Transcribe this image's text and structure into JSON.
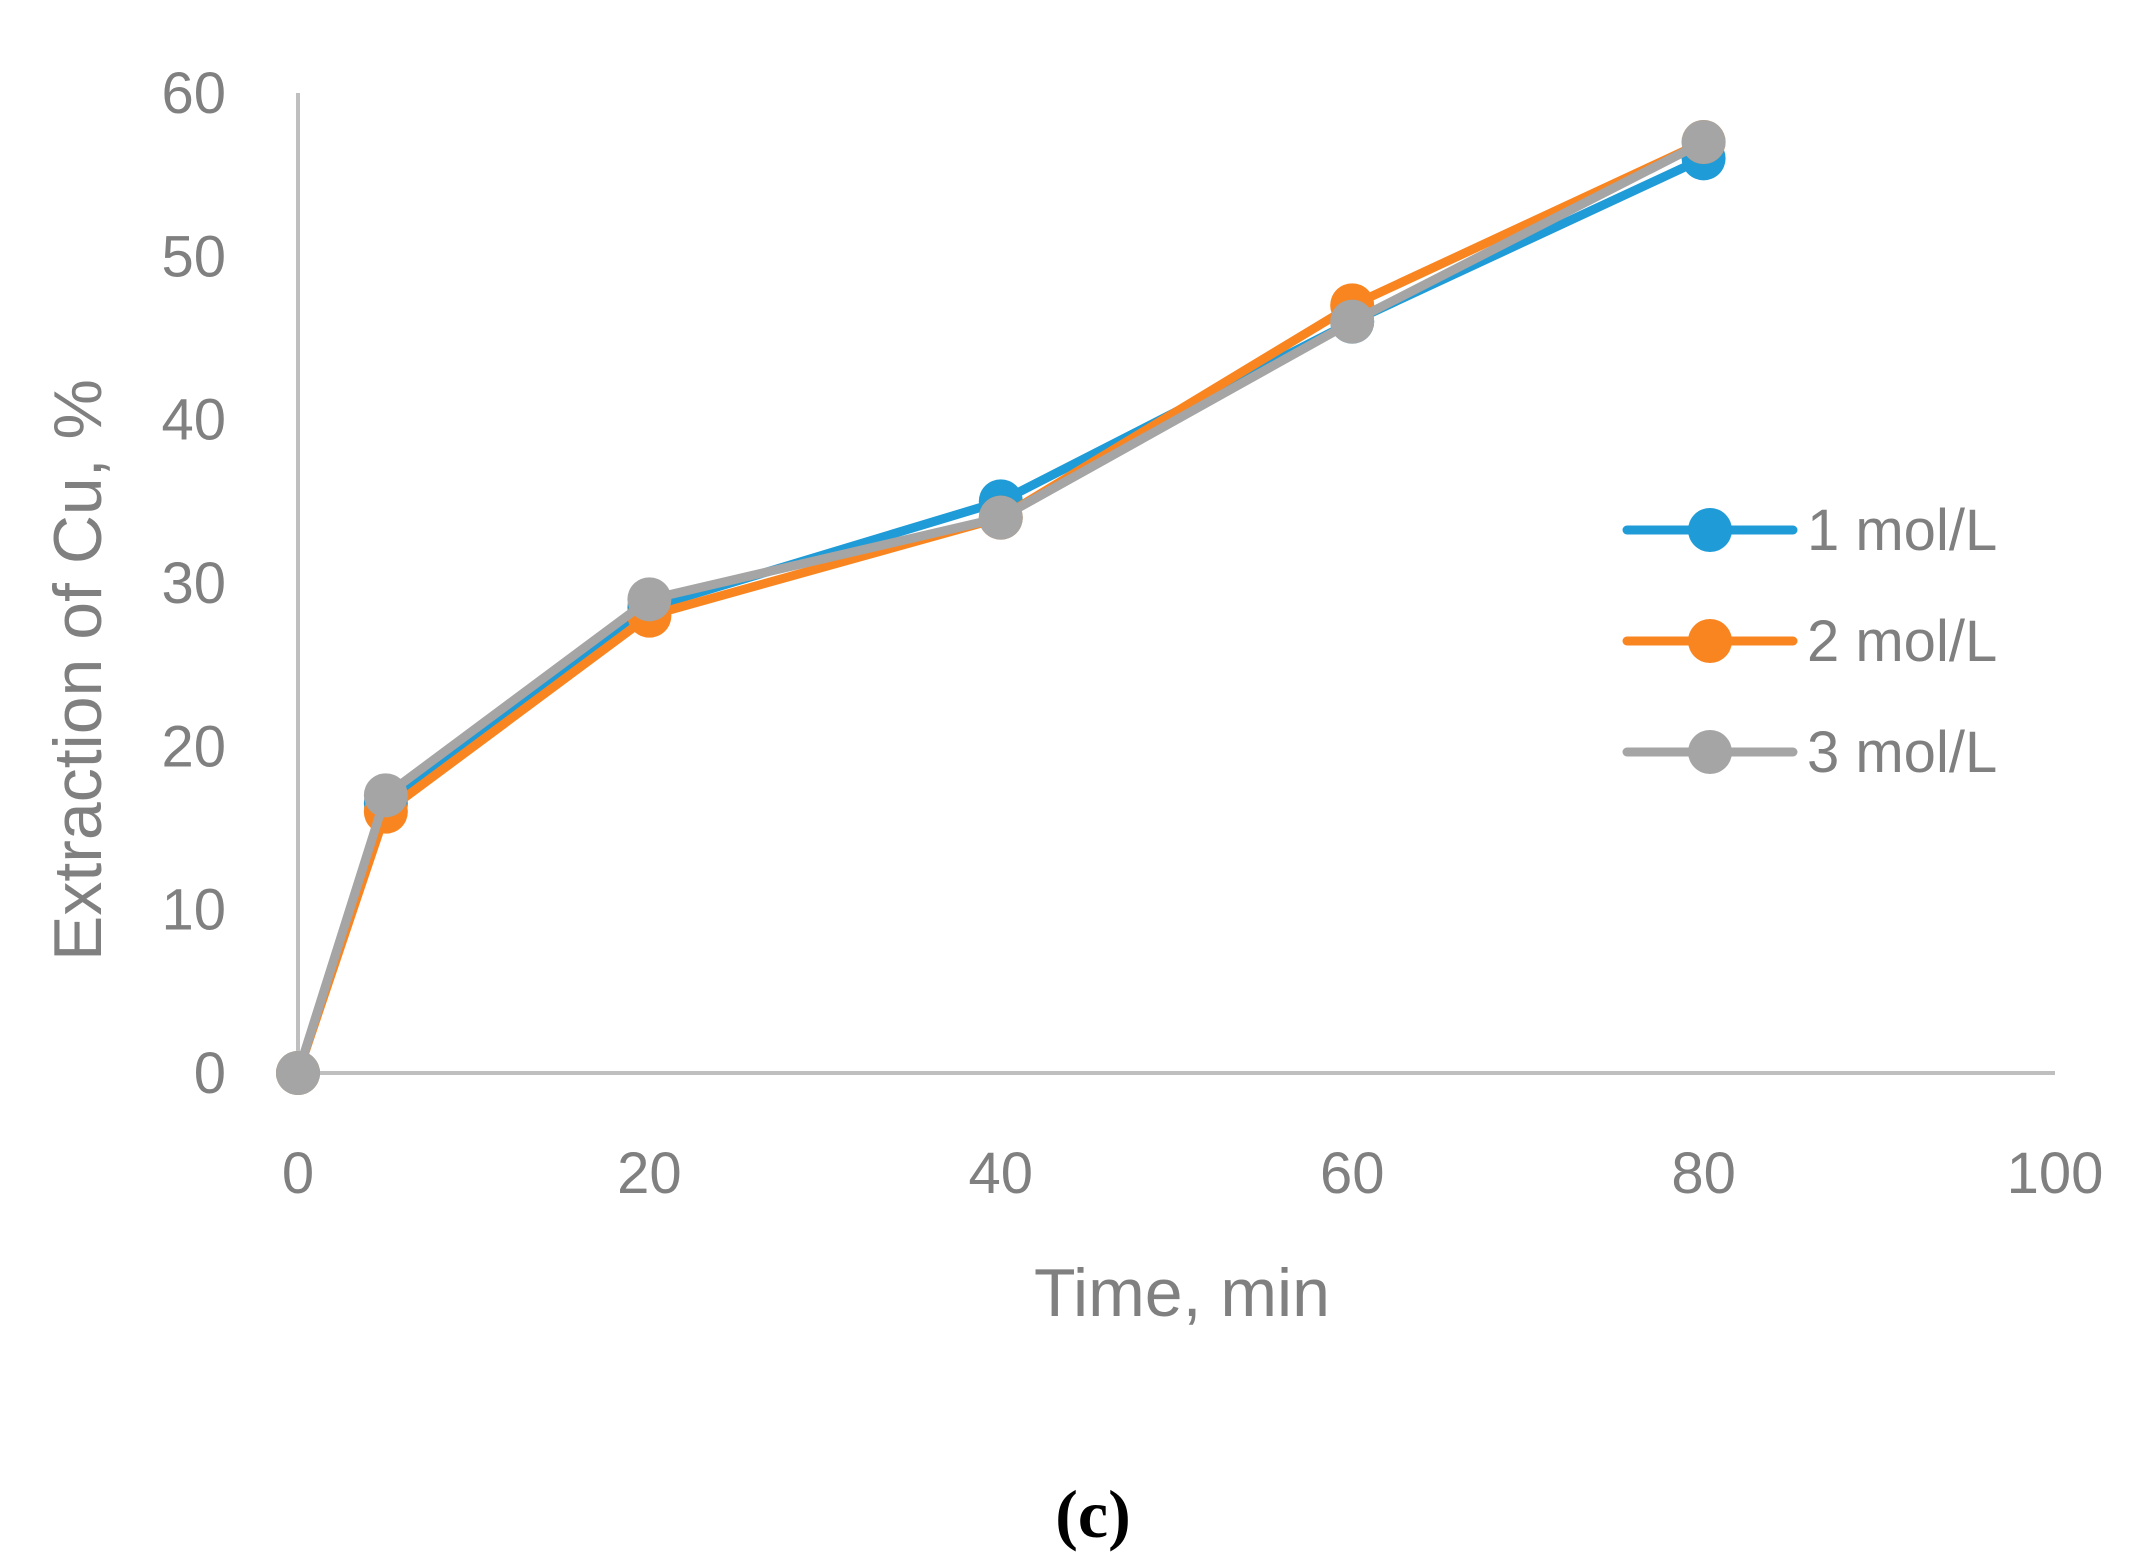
{
  "chart_data": {
    "type": "line",
    "xlabel": "Time, min",
    "ylabel": "Extraction of Cu, %",
    "xlim": [
      0,
      100
    ],
    "ylim": [
      0,
      60
    ],
    "xticks": [
      0,
      20,
      40,
      60,
      80,
      100
    ],
    "yticks": [
      0,
      10,
      20,
      30,
      40,
      50,
      60
    ],
    "x": [
      0,
      5,
      20,
      40,
      60,
      80
    ],
    "legend_position": "right",
    "series": [
      {
        "name": "1 mol/L",
        "color": "#1f9bd7",
        "values": [
          0,
          16.5,
          28.5,
          35,
          46,
          56
        ]
      },
      {
        "name": "2 mol/L",
        "color": "#f98520",
        "values": [
          0,
          16,
          28,
          34,
          47,
          57
        ]
      },
      {
        "name": "3 mol/L",
        "color": "#a5a5a5",
        "values": [
          0,
          17,
          29,
          34,
          46,
          57
        ]
      }
    ],
    "caption": "(c)"
  }
}
